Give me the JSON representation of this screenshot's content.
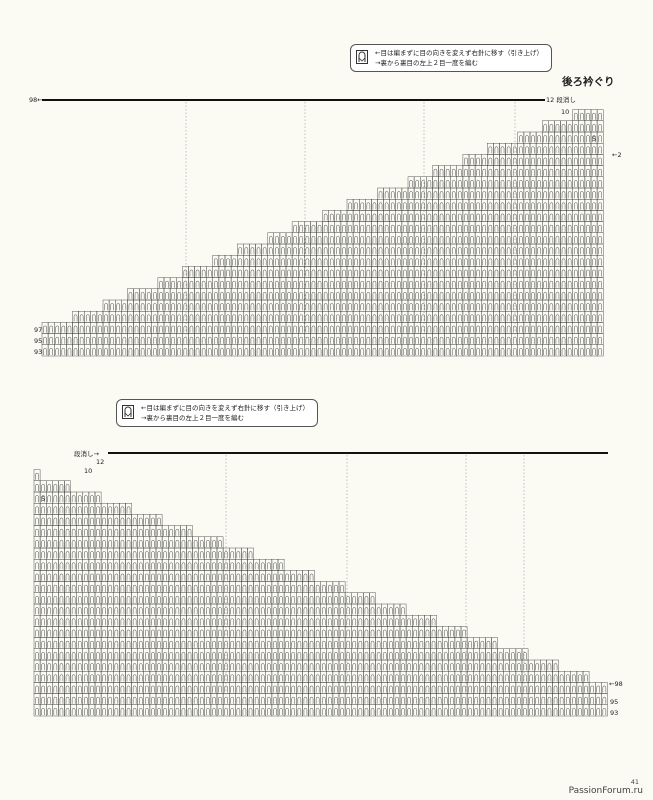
{
  "top_chart": {
    "title": "後ろ衿ぐり",
    "note": {
      "line1": "←目は編まずに目の向きを変えず右針に移す（引き上げ）",
      "line2": "→裏から裏目の左上２目一度を編む"
    },
    "labels": {
      "row_98": "98←",
      "row_97": "97",
      "row_95": "95",
      "row_93": "93",
      "short_row_end": "12 段消し",
      "row_10": "10",
      "row_5": "5",
      "row_2": "←2"
    }
  },
  "bottom_chart": {
    "note": {
      "line1": "←目は編まずに目の向きを変えず右針に移す（引き上げ）",
      "line2": "→裏から裏目の左上２目一度を編む"
    },
    "labels": {
      "short_row_end": "段消し→",
      "row_12": "12",
      "row_10": "10",
      "row_5": "5",
      "row_98": "←98",
      "row_95": "95",
      "row_93": "93"
    }
  },
  "page_number": "41",
  "watermark": "PassionForum.ru",
  "colors": {
    "paper": "#fbfbf3",
    "grid": "#333333",
    "bold_line": "#111111",
    "dotted": "#999999"
  }
}
